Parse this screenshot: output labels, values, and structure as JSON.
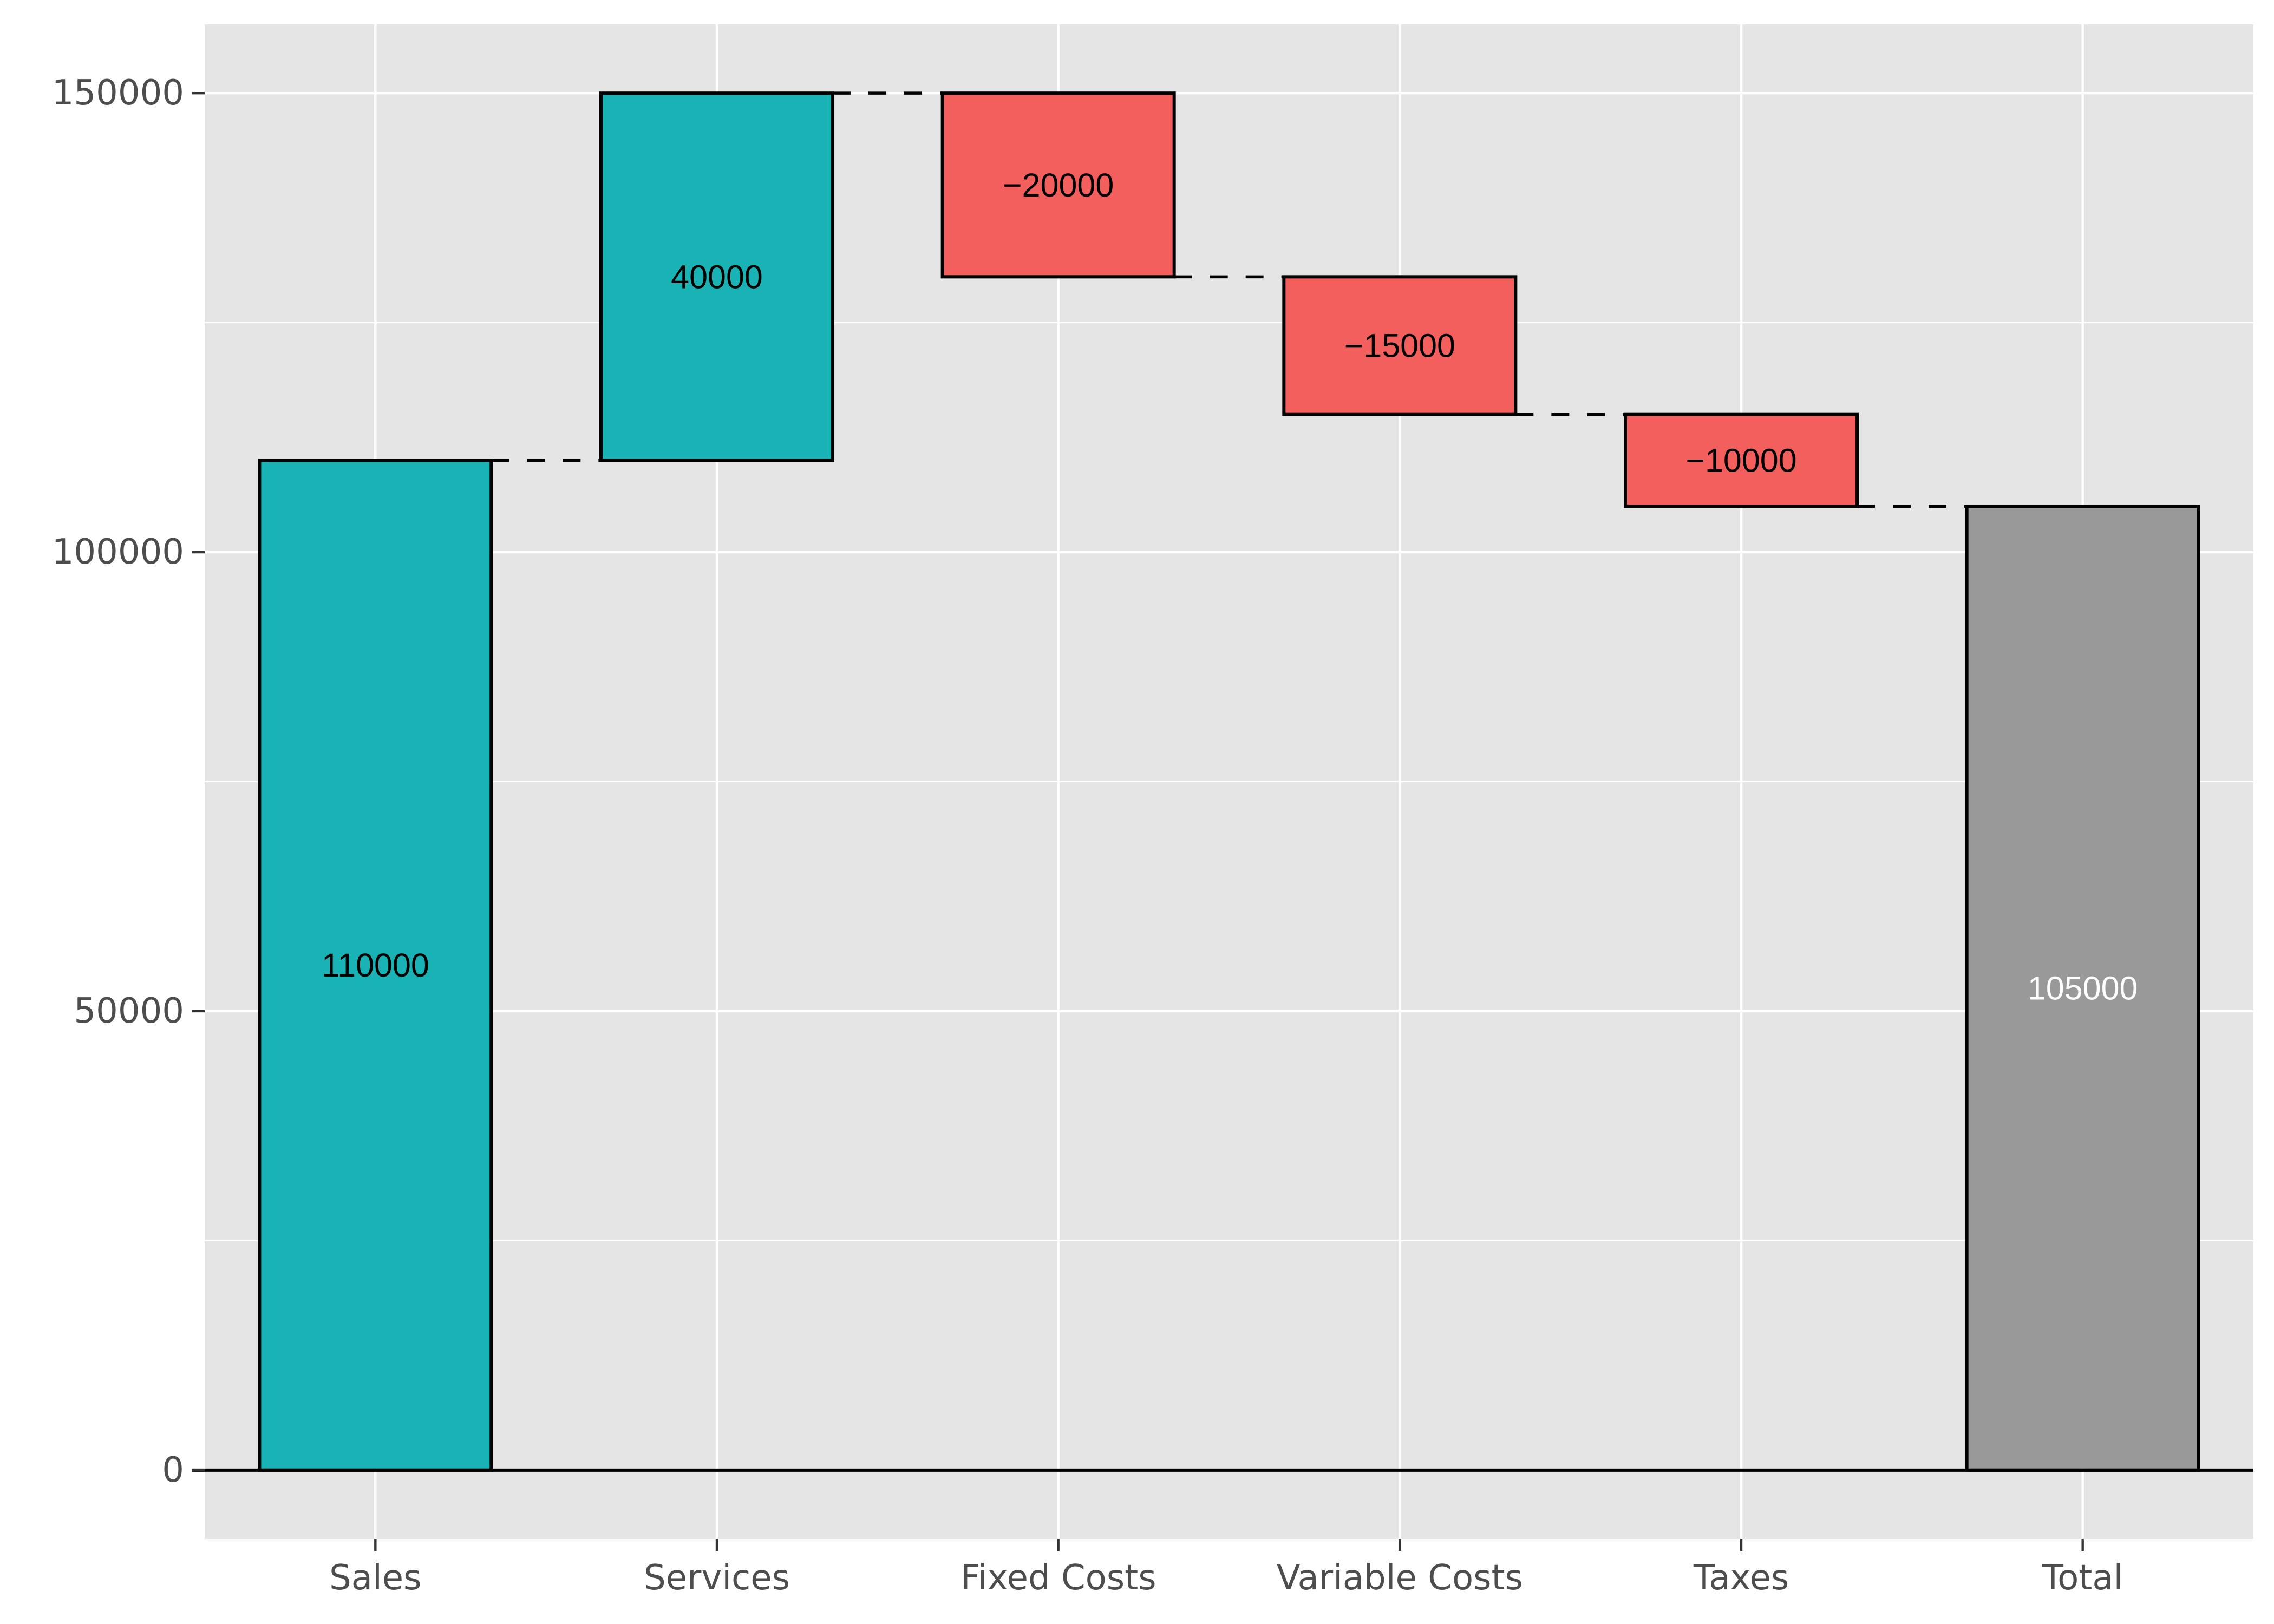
{
  "chart_data": {
    "type": "waterfall",
    "title": "",
    "xlabel": "",
    "ylabel": "",
    "categories": [
      "Sales",
      "Services",
      "Fixed Costs",
      "Variable Costs",
      "Taxes",
      "Total"
    ],
    "values": [
      110000,
      40000,
      -20000,
      -15000,
      -10000,
      105000
    ],
    "value_labels": [
      "110000",
      "40000",
      "−20000",
      "−15000",
      "−10000",
      "105000"
    ],
    "kinds": [
      "increase",
      "increase",
      "decrease",
      "decrease",
      "decrease",
      "total"
    ],
    "y_ticks": [
      0,
      50000,
      100000,
      150000
    ],
    "y_tick_labels": [
      "0",
      "50000",
      "100000",
      "150000"
    ],
    "ylim": [
      -7500,
      157500
    ],
    "grid": true,
    "legend": "none",
    "colors": {
      "increase": "#19B2B5",
      "decrease": "#F25F5C",
      "total": "#999999",
      "panel": "#E5E5E5",
      "grid": "#FFFFFF",
      "outline": "#000000",
      "label_dark": "#000000",
      "label_light": "#FFFFFF"
    }
  }
}
